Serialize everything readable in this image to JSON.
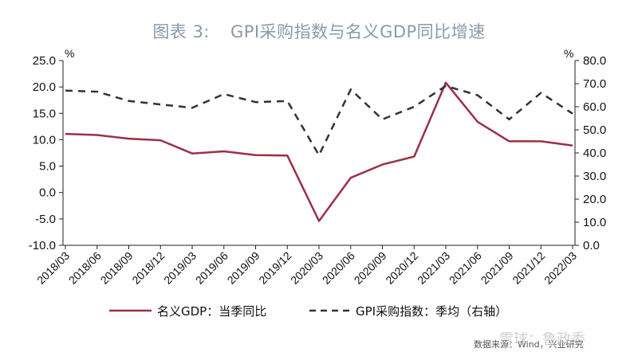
{
  "title": {
    "prefix": "图表 3:",
    "text": "GPI采购指数与名义GDP同比增速"
  },
  "source_note": "数据来源：Wind，兴业研究",
  "watermark": "雪球：鲁政委",
  "colors": {
    "gdp": "#9b3046",
    "gpi": "#333333",
    "axis": "#222222",
    "title": "#8a9aac"
  },
  "chart_data": {
    "type": "line",
    "categories": [
      "2018/03",
      "2018/06",
      "2018/09",
      "2018/12",
      "2019/03",
      "2019/06",
      "2019/09",
      "2019/12",
      "2020/03",
      "2020/06",
      "2020/09",
      "2020/12",
      "2021/03",
      "2021/06",
      "2021/09",
      "2021/12",
      "2022/03"
    ],
    "y_left": {
      "unit": "%",
      "min": -10,
      "max": 25,
      "step": 5,
      "ticks": [
        "25.0",
        "20.0",
        "15.0",
        "10.0",
        "5.0",
        "0.0",
        "-5.0",
        "-10.0"
      ]
    },
    "y_right": {
      "unit": "%",
      "min": 0,
      "max": 80,
      "step": 10,
      "ticks": [
        "80.0",
        "70.0",
        "60.0",
        "50.0",
        "40.0",
        "30.0",
        "20.0",
        "10.0",
        "0.0"
      ]
    },
    "series": [
      {
        "name": "名义GDP：当季同比",
        "axis": "left",
        "style": "solid",
        "values": [
          11.1,
          10.9,
          10.2,
          9.9,
          7.4,
          7.8,
          7.1,
          7.0,
          -5.4,
          2.8,
          5.3,
          6.8,
          20.8,
          13.4,
          9.7,
          9.7,
          8.9
        ]
      },
      {
        "name": "GPI采购指数：季均（右轴）",
        "axis": "right",
        "style": "dashed",
        "values": [
          67,
          66.5,
          62.5,
          61,
          59.5,
          65.5,
          62,
          62.5,
          39,
          67.5,
          54.5,
          60,
          69,
          65,
          54.5,
          66,
          57
        ]
      }
    ],
    "grid": false,
    "legend": "bottom"
  }
}
